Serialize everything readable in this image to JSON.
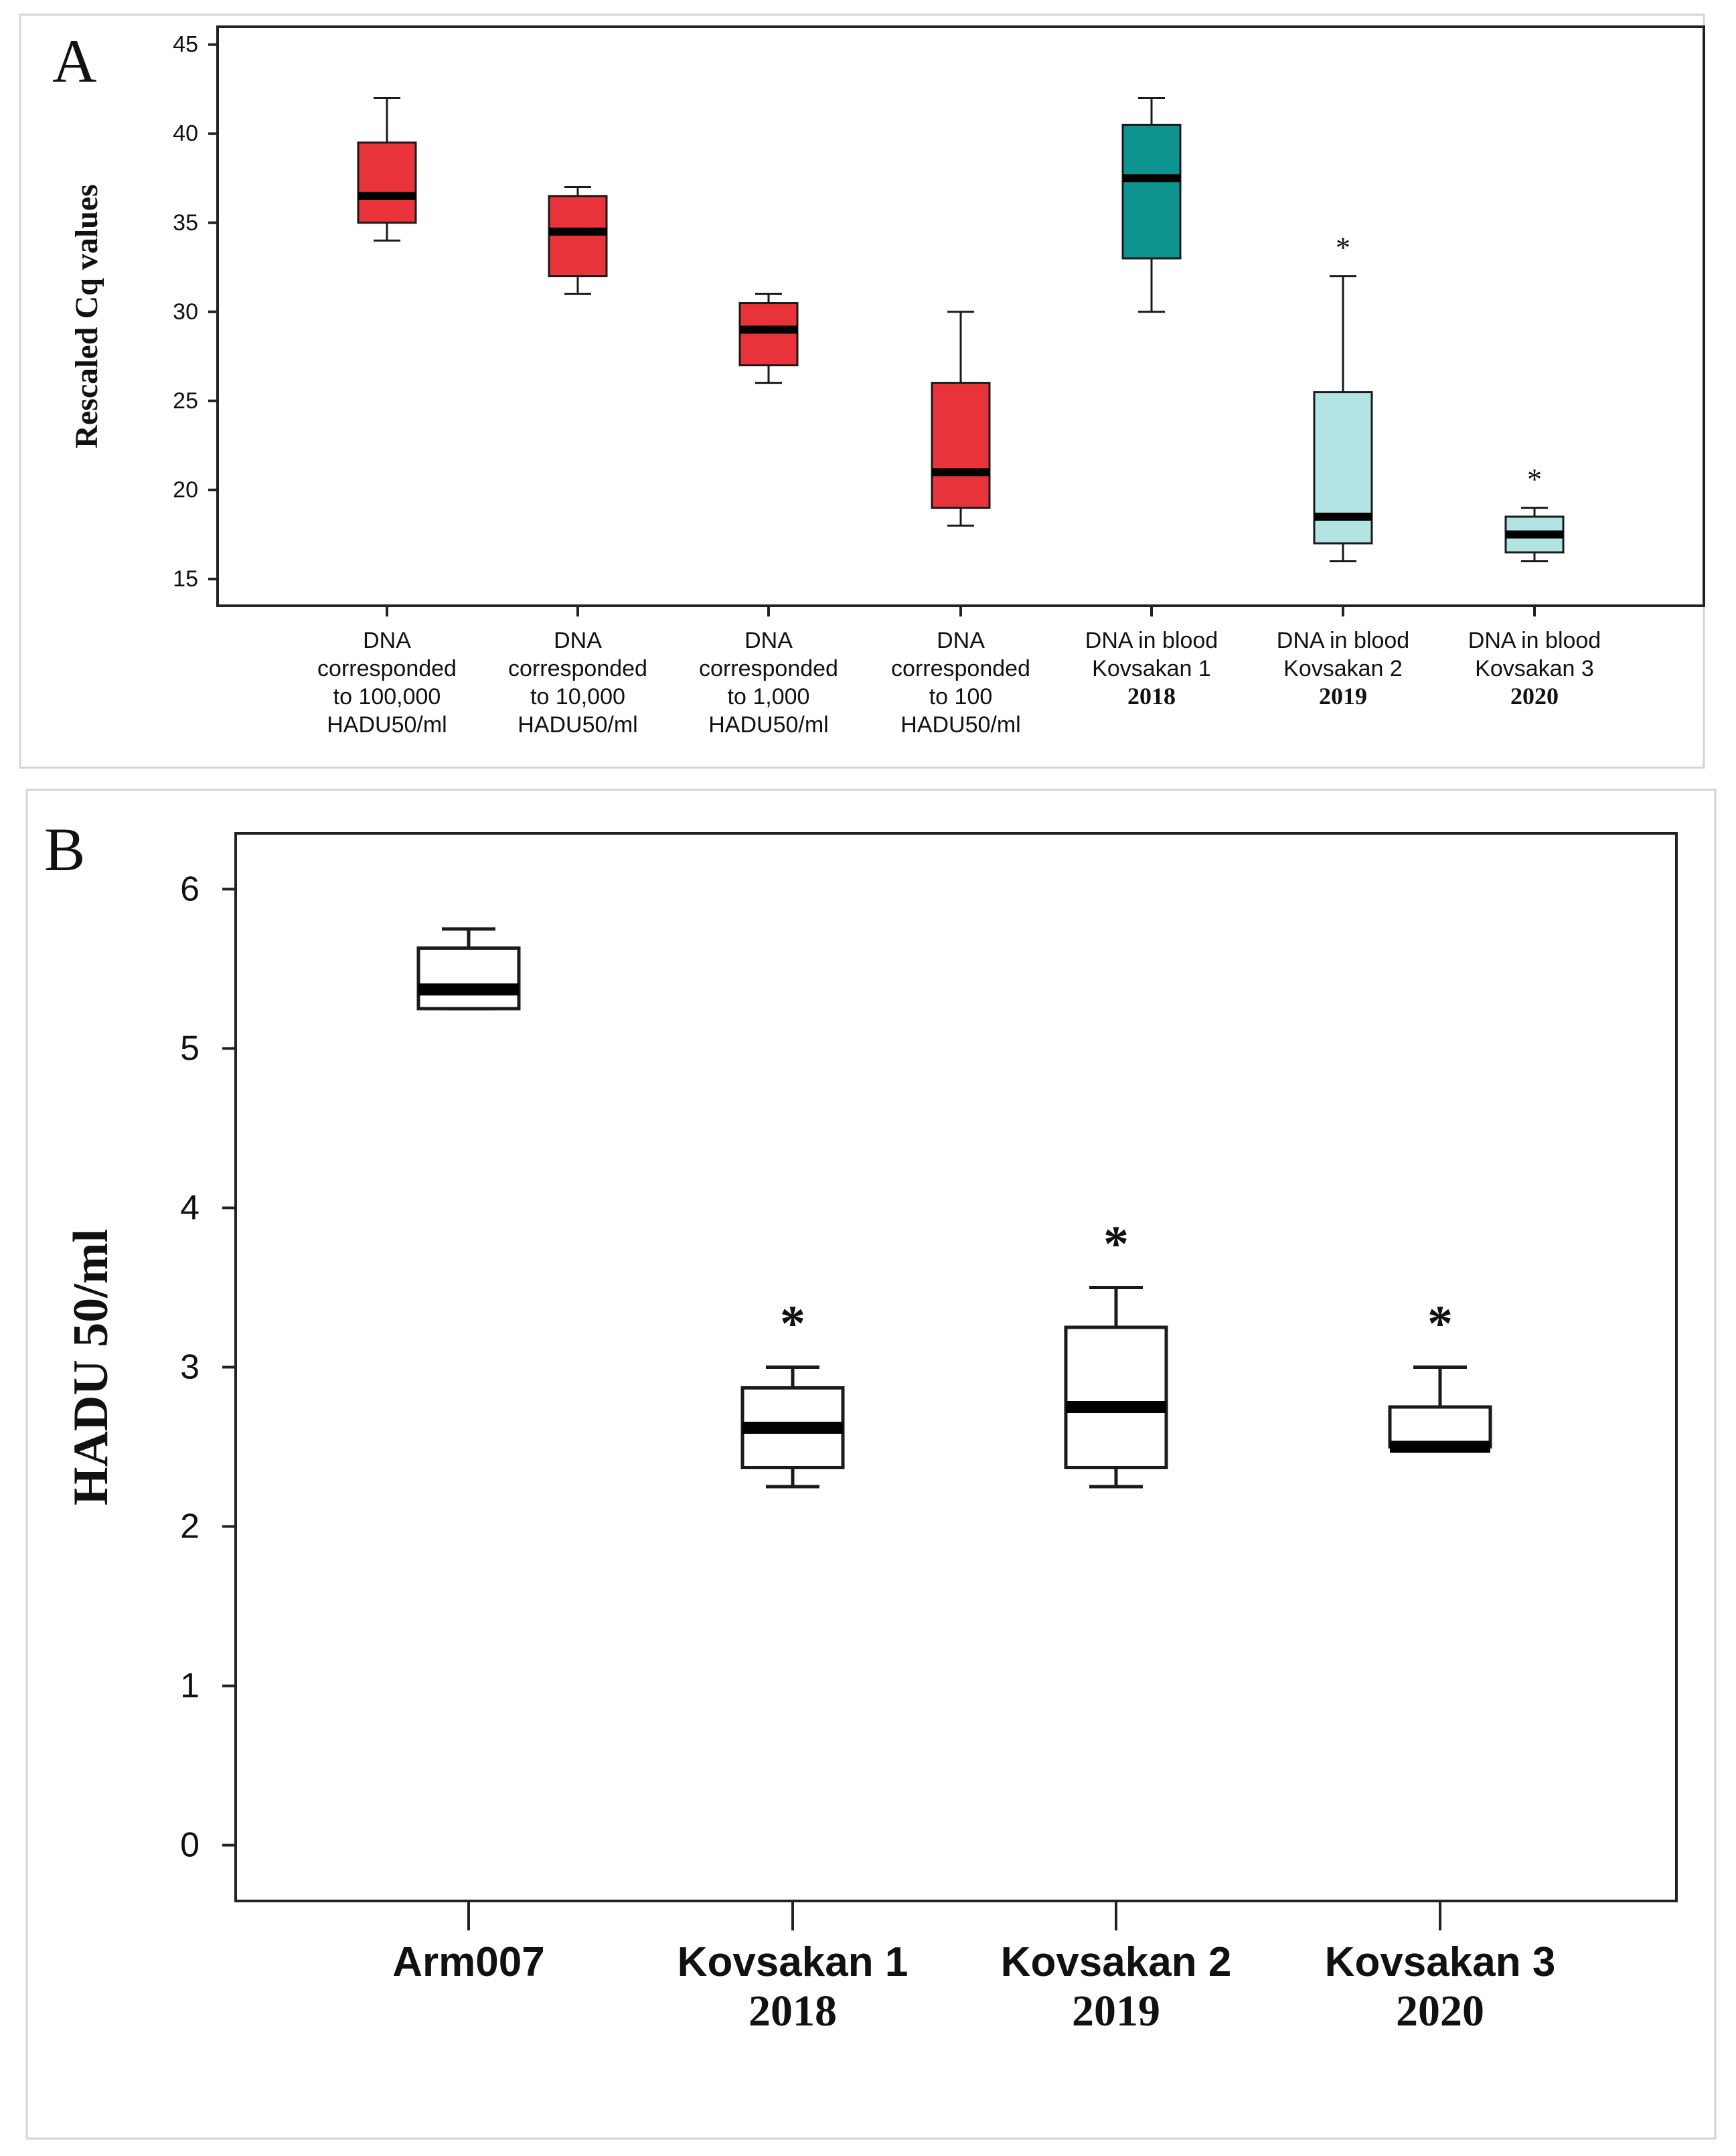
{
  "chart_data": [
    {
      "panel": "A",
      "type": "box",
      "ylabel": "Rescaled Cq values",
      "ylim": [
        13.5,
        46
      ],
      "yticks": [
        15,
        20,
        25,
        30,
        35,
        40,
        45
      ],
      "categories": [
        {
          "lines": [
            "DNA",
            "corresponded",
            "to 100,000",
            "HADU50/ml"
          ],
          "min": 34,
          "q1": 35,
          "median": 36.5,
          "q3": 39.5,
          "max": 42,
          "color": "#e8333a",
          "outlier": false
        },
        {
          "lines": [
            "DNA",
            "corresponded",
            "to 10,000",
            "HADU50/ml"
          ],
          "min": 31,
          "q1": 32,
          "median": 34.5,
          "q3": 36.5,
          "max": 37,
          "color": "#e8333a",
          "outlier": false
        },
        {
          "lines": [
            "DNA",
            "corresponded",
            "to 1,000",
            "HADU50/ml"
          ],
          "min": 26,
          "q1": 27,
          "median": 29,
          "q3": 30.5,
          "max": 31,
          "color": "#e8333a",
          "outlier": false
        },
        {
          "lines": [
            "DNA",
            "corresponded",
            "to 100",
            "HADU50/ml"
          ],
          "min": 18,
          "q1": 19,
          "median": 21,
          "q3": 26,
          "max": 30,
          "color": "#e8333a",
          "outlier": false
        },
        {
          "lines": [
            "DNA in blood",
            "Kovsakan 1",
            "2018"
          ],
          "min": 30,
          "q1": 33,
          "median": 37.5,
          "q3": 40.5,
          "max": 42,
          "color": "#0e9490",
          "outlier": false
        },
        {
          "lines": [
            "DNA in blood",
            "Kovsakan 2",
            "2019"
          ],
          "min": 16,
          "q1": 17,
          "median": 18.5,
          "q3": 25.5,
          "max": 32,
          "color": "#b3e4e4",
          "outlier": true,
          "marker": "*"
        },
        {
          "lines": [
            "DNA in blood",
            "Kovsakan 3",
            "2020"
          ],
          "min": 16,
          "q1": 16.5,
          "median": 17.5,
          "q3": 18.5,
          "max": 19,
          "color": "#b3e4e4",
          "outlier": true,
          "marker": "*"
        }
      ],
      "panel_label": "A"
    },
    {
      "panel": "B",
      "type": "box",
      "ylabel": "HADU 50/ml",
      "ylim": [
        -0.35,
        6.35
      ],
      "yticks": [
        0,
        1,
        2,
        3,
        4,
        5,
        6
      ],
      "categories": [
        {
          "lines": [
            "Arm007"
          ],
          "min": 5.25,
          "q1": 5.25,
          "median": 5.37,
          "q3": 5.63,
          "max": 5.75,
          "color": "#ffffff",
          "outlier": false
        },
        {
          "lines": [
            "Kovsakan 1",
            "2018"
          ],
          "min": 2.25,
          "q1": 2.37,
          "median": 2.62,
          "q3": 2.87,
          "max": 3.0,
          "color": "#ffffff",
          "outlier": true,
          "marker": "*"
        },
        {
          "lines": [
            "Kovsakan 2",
            "2019"
          ],
          "min": 2.25,
          "q1": 2.37,
          "median": 2.75,
          "q3": 3.25,
          "max": 3.5,
          "color": "#ffffff",
          "outlier": true,
          "marker": "*"
        },
        {
          "lines": [
            "Kovsakan 3",
            "2020"
          ],
          "min": 2.5,
          "q1": 2.5,
          "median": 2.5,
          "q3": 2.75,
          "max": 3.0,
          "color": "#ffffff",
          "outlier": true,
          "marker": "*"
        }
      ],
      "panel_label": "B"
    }
  ]
}
